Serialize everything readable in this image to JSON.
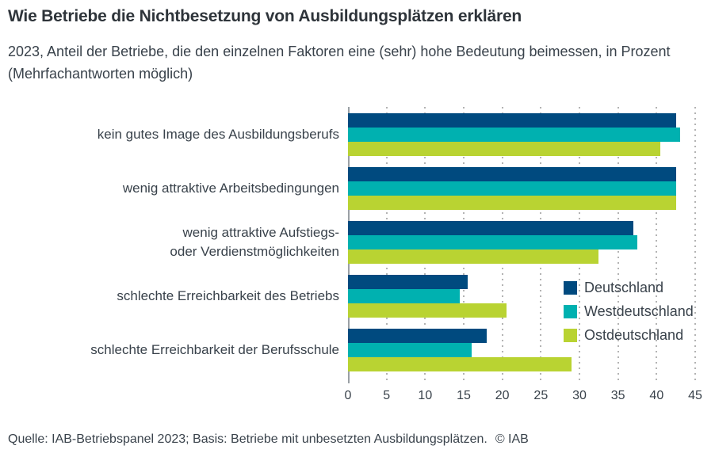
{
  "page": {
    "title": "Wie Betriebe die Nichtbesetzung von Ausbildungsplätzen erklären",
    "subtitle": "2023, Anteil der Betriebe, die den einzelnen Faktoren eine (sehr) hohe Bedeutung beimessen, in Prozent (Mehrfachantworten möglich)",
    "source": "Quelle: IAB-Betriebspanel 2023; Basis: Betriebe mit unbesetzten Ausbildungsplätzen.",
    "copyright": "© IAB"
  },
  "colors": {
    "axis": "#9aa0a5",
    "grid": "#b3b3b3",
    "text": "#39424b"
  },
  "chart_data": {
    "type": "bar",
    "orientation": "horizontal",
    "title": "Wie Betriebe die Nichtbesetzung von Ausbildungsplätzen erklären",
    "subtitle": "2023, Anteil der Betriebe, die den einzelnen Faktoren eine (sehr) hohe Bedeutung beimessen, in Prozent (Mehrfachantworten möglich)",
    "categories": [
      "kein gutes Image des Ausbildungsberufs",
      "wenig attraktive Arbeitsbedingungen",
      "wenig attraktive Aufstiegs-\noder Verdienstmöglichkeiten",
      "schlechte Erreichbarkeit des Betriebs",
      "schlechte Erreichbarkeit der Berufsschule"
    ],
    "series": [
      {
        "name": "Deutschland",
        "color": "#004a7f",
        "values": [
          42.5,
          42.5,
          37.0,
          15.5,
          18.0
        ]
      },
      {
        "name": "Westdeutschland",
        "color": "#00b1b0",
        "values": [
          43.0,
          42.5,
          37.5,
          14.5,
          16.0
        ]
      },
      {
        "name": "Ostdeutschland",
        "color": "#b9d332",
        "values": [
          40.5,
          42.5,
          32.5,
          20.5,
          29.0
        ]
      }
    ],
    "xlabel": "",
    "ylabel": "",
    "xlim": [
      0,
      45
    ],
    "xticks": [
      0,
      5,
      10,
      15,
      20,
      25,
      30,
      35,
      40,
      45
    ],
    "grid": "vertical-dotted",
    "legend_position": "inside-right-bottom",
    "unit": "Prozent"
  }
}
